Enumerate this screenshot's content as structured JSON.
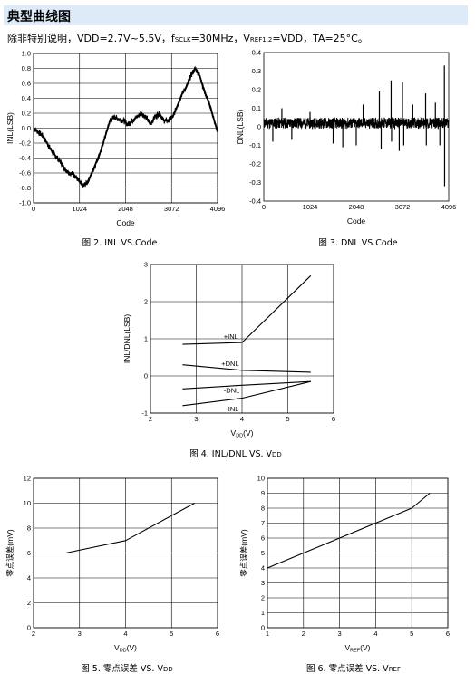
{
  "section": {
    "title": "典型曲线图",
    "conditions": {
      "prefix": "除非特别说明，VDD=2.7V~5.5V，f",
      "sclk_sub": "SCLK",
      "sclk_val": "=30MHz，V",
      "vref_sub": "REF1,2",
      "vref_val": "=VDD，TA=25°C。"
    }
  },
  "figures": {
    "fig2": {
      "caption": "图 2. INL VS.Code"
    },
    "fig3": {
      "caption": "图 3. DNL VS.Code"
    },
    "fig4": {
      "caption": "图 4. INL/DNL VS. V",
      "caption_sub": "DD"
    },
    "fig5": {
      "caption": "图 5. 零点误差 VS. V",
      "caption_sub": "DD"
    },
    "fig6": {
      "caption": "图 6. 零点误差 VS. V",
      "caption_sub": "REF"
    }
  },
  "chart_data": [
    {
      "id": "fig2",
      "type": "line",
      "xlabel": "Code",
      "ylabel": "INL(LSB)",
      "xlim": [
        0,
        4096
      ],
      "ylim": [
        -1.0,
        1.0
      ],
      "xticks": [
        "0",
        "1024",
        "2048",
        "3072",
        "4096"
      ],
      "yticks": [
        "1.0",
        "0.8",
        "0.6",
        "0.4",
        "0.2",
        "0.0",
        "-0.2",
        "-0.4",
        "-0.6",
        "-0.8",
        "-1.0"
      ],
      "grid": true,
      "series": [
        {
          "x": [
            0,
            100,
            200,
            300,
            400,
            500,
            600,
            700,
            800,
            900,
            1000,
            1100,
            1200,
            1300,
            1400,
            1500,
            1600,
            1700,
            1800,
            1900,
            2000,
            2100,
            2200,
            2300,
            2400,
            2500,
            2600,
            2700,
            2800,
            2900,
            3000,
            3100,
            3200,
            3300,
            3400,
            3500,
            3600,
            3700,
            3800,
            3900,
            4000,
            4096
          ],
          "y": [
            0.0,
            -0.05,
            -0.1,
            -0.2,
            -0.3,
            -0.38,
            -0.45,
            -0.55,
            -0.6,
            -0.62,
            -0.7,
            -0.78,
            -0.72,
            -0.6,
            -0.45,
            -0.3,
            -0.1,
            0.1,
            0.15,
            0.12,
            0.1,
            0.05,
            0.1,
            0.15,
            0.2,
            0.15,
            0.05,
            0.15,
            0.2,
            0.1,
            0.1,
            0.15,
            0.3,
            0.45,
            0.55,
            0.7,
            0.8,
            0.7,
            0.5,
            0.35,
            0.15,
            -0.05
          ]
        }
      ]
    },
    {
      "id": "fig3",
      "type": "line",
      "xlabel": "Code",
      "ylabel": "DNL(LSB)",
      "xlim": [
        0,
        4096
      ],
      "ylim": [
        -0.4,
        0.4
      ],
      "xticks": [
        "0",
        "1024",
        "2048",
        "3072",
        "4096"
      ],
      "yticks": [
        "0.4",
        "0.3",
        "0.2",
        "0.1",
        "0",
        "-0.1",
        "-0.2",
        "-0.3",
        "-0.4"
      ],
      "grid": false,
      "baseline": 0.02,
      "spikes": [
        {
          "x": 200,
          "y": -0.08
        },
        {
          "x": 400,
          "y": 0.1
        },
        {
          "x": 620,
          "y": -0.07
        },
        {
          "x": 1024,
          "y": 0.08
        },
        {
          "x": 1536,
          "y": -0.09
        },
        {
          "x": 1750,
          "y": -0.11
        },
        {
          "x": 2048,
          "y": -0.1
        },
        {
          "x": 2200,
          "y": 0.12
        },
        {
          "x": 2560,
          "y": 0.19
        },
        {
          "x": 2600,
          "y": -0.12
        },
        {
          "x": 2820,
          "y": 0.25
        },
        {
          "x": 2830,
          "y": -0.08
        },
        {
          "x": 3000,
          "y": -0.13
        },
        {
          "x": 3072,
          "y": 0.24
        },
        {
          "x": 3100,
          "y": -0.1
        },
        {
          "x": 3300,
          "y": 0.12
        },
        {
          "x": 3584,
          "y": 0.18
        },
        {
          "x": 3600,
          "y": -0.1
        },
        {
          "x": 3800,
          "y": 0.13
        },
        {
          "x": 3900,
          "y": -0.1
        },
        {
          "x": 4000,
          "y": 0.33
        },
        {
          "x": 4005,
          "y": -0.32
        }
      ]
    },
    {
      "id": "fig4",
      "type": "line",
      "xlabel": "V",
      "xlabel_sub": "DD",
      "xlabel_unit": "(V)",
      "ylabel": "INL/DNL(LSB)",
      "xlim": [
        2,
        6
      ],
      "ylim": [
        -1,
        3
      ],
      "xticks": [
        "2",
        "3",
        "4",
        "5",
        "6"
      ],
      "yticks": [
        "3",
        "2",
        "1",
        "0",
        "-1"
      ],
      "grid": true,
      "series": [
        {
          "name": "+INL",
          "x": [
            2.7,
            4.0,
            5.5
          ],
          "y": [
            0.85,
            0.9,
            2.7
          ]
        },
        {
          "name": "+DNL",
          "x": [
            2.7,
            4.0,
            5.5
          ],
          "y": [
            0.3,
            0.15,
            0.1
          ]
        },
        {
          "name": "-DNL",
          "x": [
            2.7,
            4.0,
            5.5
          ],
          "y": [
            -0.35,
            -0.25,
            -0.15
          ]
        },
        {
          "name": "-INL",
          "x": [
            2.7,
            4.0,
            5.5
          ],
          "y": [
            -0.8,
            -0.6,
            -0.15
          ]
        }
      ]
    },
    {
      "id": "fig5",
      "type": "line",
      "xlabel": "V",
      "xlabel_sub": "DD",
      "xlabel_unit": "(V)",
      "ylabel": "零点误差(mV)",
      "xlim": [
        2,
        6
      ],
      "ylim": [
        0,
        12
      ],
      "xticks": [
        "2",
        "3",
        "4",
        "5",
        "6"
      ],
      "yticks": [
        "12",
        "10",
        "8",
        "6",
        "4",
        "2",
        "0"
      ],
      "grid": true,
      "series": [
        {
          "x": [
            2.7,
            4.0,
            5.5
          ],
          "y": [
            6.0,
            7.0,
            10.0
          ]
        }
      ]
    },
    {
      "id": "fig6",
      "type": "line",
      "xlabel": "V",
      "xlabel_sub": "REF",
      "xlabel_unit": "(V)",
      "ylabel": "零点误差(mV)",
      "xlim": [
        1,
        6
      ],
      "ylim": [
        0,
        10
      ],
      "xticks": [
        "1",
        "2",
        "3",
        "4",
        "5",
        "6"
      ],
      "yticks": [
        "10",
        "9",
        "8",
        "7",
        "6",
        "5",
        "4",
        "3",
        "2",
        "1",
        "0"
      ],
      "grid": true,
      "series": [
        {
          "x": [
            1.0,
            2.0,
            3.0,
            4.0,
            5.0,
            5.5
          ],
          "y": [
            4.0,
            5.0,
            6.0,
            7.0,
            8.0,
            9.0
          ]
        }
      ]
    }
  ]
}
